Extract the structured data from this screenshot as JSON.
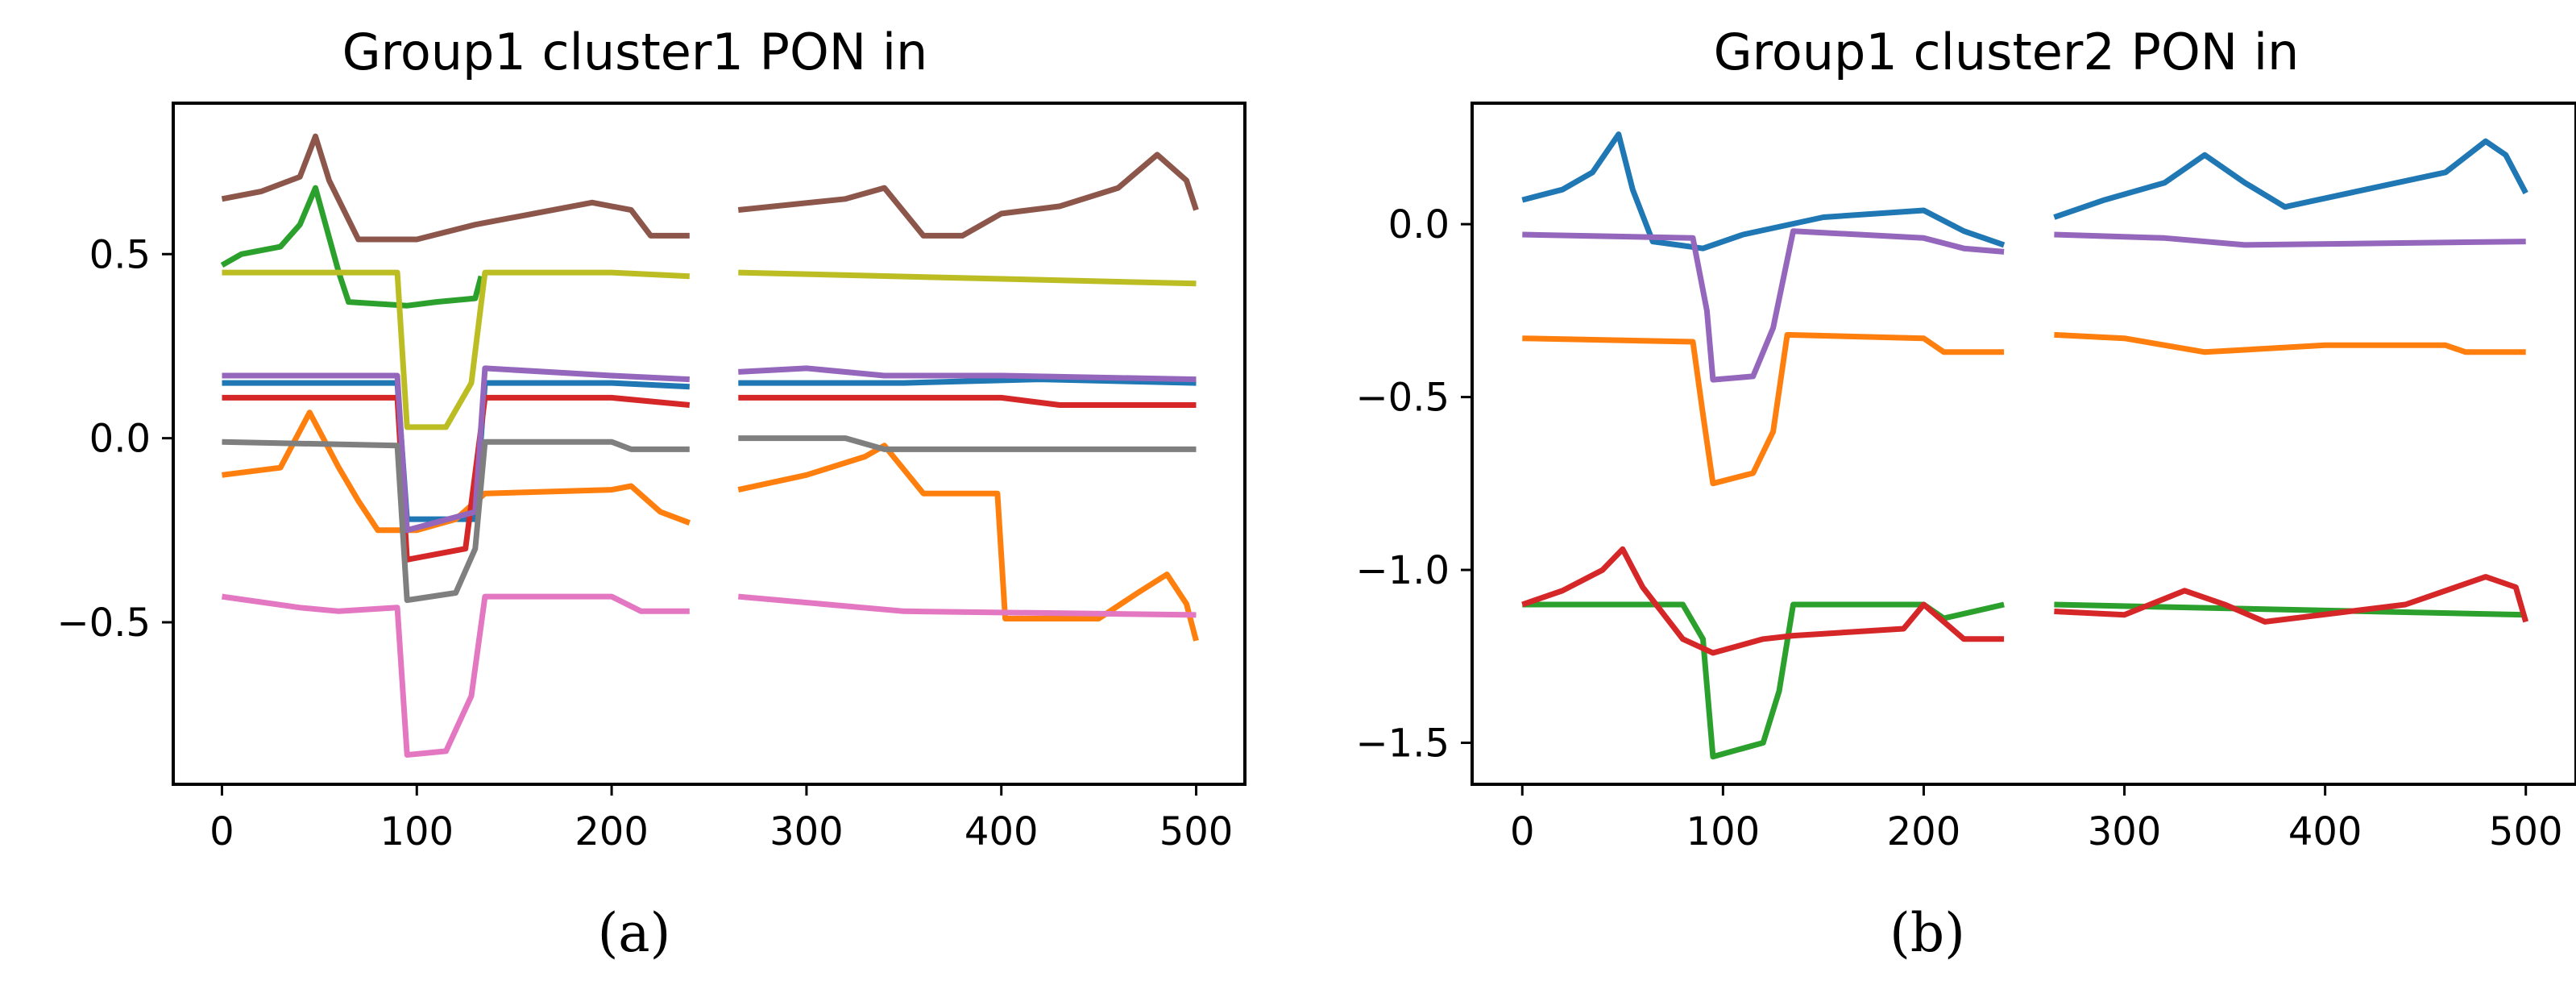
{
  "chart_data": [
    {
      "panel_id": "a",
      "type": "line",
      "title": "Group1 cluster1 PON in",
      "caption": "(a)",
      "xlabel": "",
      "ylabel": "",
      "xlim": [
        -25,
        525
      ],
      "ylim": [
        -0.94,
        0.91
      ],
      "xticks": [
        0,
        100,
        200,
        300,
        400,
        500
      ],
      "xtick_labels": [
        "0",
        "100",
        "200",
        "300",
        "400",
        "500"
      ],
      "yticks": [
        -0.5,
        0.0,
        0.5
      ],
      "ytick_labels": [
        "−0.5",
        "0.0",
        "0.5"
      ],
      "grid": false,
      "gaps": [
        [
          240,
          265
        ]
      ],
      "series": [
        {
          "name": "s1-blue",
          "color": "#1f77b4",
          "points": [
            [
              0,
              0.15
            ],
            [
              50,
              0.15
            ],
            [
              90,
              0.15
            ],
            [
              95,
              -0.22
            ],
            [
              130,
              -0.22
            ],
            [
              135,
              0.15
            ],
            [
              200,
              0.15
            ],
            [
              240,
              0.14
            ],
            [
              265,
              0.15
            ],
            [
              350,
              0.15
            ],
            [
              420,
              0.16
            ],
            [
              500,
              0.15
            ]
          ]
        },
        {
          "name": "s1-orange",
          "color": "#ff7f0e",
          "points": [
            [
              0,
              -0.1
            ],
            [
              30,
              -0.08
            ],
            [
              45,
              0.07
            ],
            [
              60,
              -0.08
            ],
            [
              70,
              -0.17
            ],
            [
              80,
              -0.25
            ],
            [
              100,
              -0.25
            ],
            [
              120,
              -0.22
            ],
            [
              135,
              -0.15
            ],
            [
              200,
              -0.14
            ],
            [
              210,
              -0.13
            ],
            [
              225,
              -0.2
            ],
            [
              240,
              -0.23
            ],
            [
              265,
              -0.14
            ],
            [
              300,
              -0.1
            ],
            [
              330,
              -0.05
            ],
            [
              340,
              -0.02
            ],
            [
              360,
              -0.15
            ],
            [
              398,
              -0.15
            ],
            [
              402,
              -0.49
            ],
            [
              450,
              -0.49
            ],
            [
              470,
              -0.42
            ],
            [
              485,
              -0.37
            ],
            [
              495,
              -0.45
            ],
            [
              500,
              -0.55
            ]
          ]
        },
        {
          "name": "s1-green",
          "color": "#2ca02c",
          "points": [
            [
              0,
              0.47
            ],
            [
              10,
              0.5
            ],
            [
              30,
              0.52
            ],
            [
              40,
              0.58
            ],
            [
              48,
              0.68
            ],
            [
              60,
              0.45
            ],
            [
              65,
              0.37
            ],
            [
              95,
              0.36
            ],
            [
              110,
              0.37
            ],
            [
              130,
              0.38
            ],
            [
              133,
              0.44
            ]
          ]
        },
        {
          "name": "s1-red",
          "color": "#d62728",
          "points": [
            [
              0,
              0.11
            ],
            [
              90,
              0.11
            ],
            [
              95,
              -0.33
            ],
            [
              125,
              -0.3
            ],
            [
              135,
              0.11
            ],
            [
              200,
              0.11
            ],
            [
              240,
              0.09
            ],
            [
              265,
              0.11
            ],
            [
              400,
              0.11
            ],
            [
              430,
              0.09
            ],
            [
              500,
              0.09
            ]
          ]
        },
        {
          "name": "s1-purple",
          "color": "#9467bd",
          "points": [
            [
              0,
              0.17
            ],
            [
              90,
              0.17
            ],
            [
              95,
              -0.25
            ],
            [
              130,
              -0.2
            ],
            [
              135,
              0.19
            ],
            [
              200,
              0.17
            ],
            [
              240,
              0.16
            ],
            [
              265,
              0.18
            ],
            [
              300,
              0.19
            ],
            [
              340,
              0.17
            ],
            [
              400,
              0.17
            ],
            [
              500,
              0.16
            ]
          ]
        },
        {
          "name": "s1-brown",
          "color": "#8c564b",
          "points": [
            [
              0,
              0.65
            ],
            [
              20,
              0.67
            ],
            [
              40,
              0.71
            ],
            [
              48,
              0.82
            ],
            [
              55,
              0.7
            ],
            [
              70,
              0.54
            ],
            [
              100,
              0.54
            ],
            [
              130,
              0.58
            ],
            [
              190,
              0.64
            ],
            [
              210,
              0.62
            ],
            [
              220,
              0.55
            ],
            [
              240,
              0.55
            ],
            [
              265,
              0.62
            ],
            [
              320,
              0.65
            ],
            [
              340,
              0.68
            ],
            [
              360,
              0.55
            ],
            [
              380,
              0.55
            ],
            [
              400,
              0.61
            ],
            [
              430,
              0.63
            ],
            [
              460,
              0.68
            ],
            [
              480,
              0.77
            ],
            [
              495,
              0.7
            ],
            [
              500,
              0.62
            ]
          ]
        },
        {
          "name": "s1-pink",
          "color": "#e377c2",
          "points": [
            [
              0,
              -0.43
            ],
            [
              40,
              -0.46
            ],
            [
              60,
              -0.47
            ],
            [
              90,
              -0.46
            ],
            [
              95,
              -0.86
            ],
            [
              115,
              -0.85
            ],
            [
              128,
              -0.7
            ],
            [
              135,
              -0.43
            ],
            [
              200,
              -0.43
            ],
            [
              215,
              -0.47
            ],
            [
              240,
              -0.47
            ],
            [
              265,
              -0.43
            ],
            [
              350,
              -0.47
            ],
            [
              500,
              -0.48
            ]
          ]
        },
        {
          "name": "s1-gray",
          "color": "#7f7f7f",
          "points": [
            [
              0,
              -0.01
            ],
            [
              90,
              -0.02
            ],
            [
              95,
              -0.44
            ],
            [
              120,
              -0.42
            ],
            [
              130,
              -0.3
            ],
            [
              135,
              -0.01
            ],
            [
              200,
              -0.01
            ],
            [
              210,
              -0.03
            ],
            [
              240,
              -0.03
            ],
            [
              265,
              0.0
            ],
            [
              320,
              0.0
            ],
            [
              340,
              -0.03
            ],
            [
              500,
              -0.03
            ]
          ]
        },
        {
          "name": "s1-olive",
          "color": "#bcbd22",
          "points": [
            [
              0,
              0.45
            ],
            [
              90,
              0.45
            ],
            [
              95,
              0.03
            ],
            [
              115,
              0.03
            ],
            [
              128,
              0.15
            ],
            [
              135,
              0.45
            ],
            [
              200,
              0.45
            ],
            [
              240,
              0.44
            ],
            [
              265,
              0.45
            ],
            [
              500,
              0.42
            ]
          ]
        }
      ]
    },
    {
      "panel_id": "b",
      "type": "line",
      "title": "Group1 cluster2 PON in",
      "caption": "(b)",
      "xlabel": "",
      "ylabel": "",
      "xlim": [
        -25,
        525
      ],
      "ylim": [
        -1.62,
        0.35
      ],
      "xticks": [
        0,
        100,
        200,
        300,
        400,
        500
      ],
      "xtick_labels": [
        "0",
        "100",
        "200",
        "300",
        "400",
        "500"
      ],
      "yticks": [
        -1.5,
        -1.0,
        -0.5,
        0.0
      ],
      "ytick_labels": [
        "−1.5",
        "−1.0",
        "−0.5",
        "0.0"
      ],
      "grid": false,
      "gaps": [
        [
          240,
          265
        ]
      ],
      "series": [
        {
          "name": "s2-blue",
          "color": "#1f77b4",
          "points": [
            [
              0,
              0.07
            ],
            [
              20,
              0.1
            ],
            [
              35,
              0.15
            ],
            [
              48,
              0.26
            ],
            [
              55,
              0.1
            ],
            [
              65,
              -0.05
            ],
            [
              90,
              -0.07
            ],
            [
              110,
              -0.03
            ],
            [
              150,
              0.02
            ],
            [
              200,
              0.04
            ],
            [
              220,
              -0.02
            ],
            [
              240,
              -0.06
            ],
            [
              265,
              0.02
            ],
            [
              290,
              0.07
            ],
            [
              320,
              0.12
            ],
            [
              340,
              0.2
            ],
            [
              360,
              0.12
            ],
            [
              380,
              0.05
            ],
            [
              420,
              0.1
            ],
            [
              460,
              0.15
            ],
            [
              480,
              0.24
            ],
            [
              490,
              0.2
            ],
            [
              500,
              0.09
            ]
          ]
        },
        {
          "name": "s2-orange",
          "color": "#ff7f0e",
          "points": [
            [
              0,
              -0.33
            ],
            [
              85,
              -0.34
            ],
            [
              90,
              -0.55
            ],
            [
              95,
              -0.75
            ],
            [
              115,
              -0.72
            ],
            [
              125,
              -0.6
            ],
            [
              132,
              -0.32
            ],
            [
              200,
              -0.33
            ],
            [
              210,
              -0.37
            ],
            [
              240,
              -0.37
            ],
            [
              265,
              -0.32
            ],
            [
              300,
              -0.33
            ],
            [
              340,
              -0.37
            ],
            [
              400,
              -0.35
            ],
            [
              460,
              -0.35
            ],
            [
              470,
              -0.37
            ],
            [
              500,
              -0.37
            ]
          ]
        },
        {
          "name": "s2-green",
          "color": "#2ca02c",
          "points": [
            [
              0,
              -1.1
            ],
            [
              80,
              -1.1
            ],
            [
              85,
              -1.15
            ],
            [
              90,
              -1.2
            ],
            [
              95,
              -1.54
            ],
            [
              120,
              -1.5
            ],
            [
              128,
              -1.35
            ],
            [
              135,
              -1.1
            ],
            [
              200,
              -1.1
            ],
            [
              210,
              -1.14
            ],
            [
              240,
              -1.1
            ],
            [
              265,
              -1.1
            ],
            [
              500,
              -1.13
            ]
          ]
        },
        {
          "name": "s2-red",
          "color": "#d62728",
          "points": [
            [
              0,
              -1.1
            ],
            [
              20,
              -1.06
            ],
            [
              40,
              -1.0
            ],
            [
              50,
              -0.94
            ],
            [
              60,
              -1.05
            ],
            [
              80,
              -1.2
            ],
            [
              95,
              -1.24
            ],
            [
              120,
              -1.2
            ],
            [
              135,
              -1.19
            ],
            [
              190,
              -1.17
            ],
            [
              200,
              -1.1
            ],
            [
              220,
              -1.2
            ],
            [
              240,
              -1.2
            ],
            [
              265,
              -1.12
            ],
            [
              300,
              -1.13
            ],
            [
              330,
              -1.06
            ],
            [
              350,
              -1.1
            ],
            [
              370,
              -1.15
            ],
            [
              440,
              -1.1
            ],
            [
              460,
              -1.06
            ],
            [
              480,
              -1.02
            ],
            [
              495,
              -1.05
            ],
            [
              500,
              -1.15
            ]
          ]
        },
        {
          "name": "s2-purple",
          "color": "#9467bd",
          "points": [
            [
              0,
              -0.03
            ],
            [
              85,
              -0.04
            ],
            [
              92,
              -0.25
            ],
            [
              95,
              -0.45
            ],
            [
              115,
              -0.44
            ],
            [
              125,
              -0.3
            ],
            [
              135,
              -0.02
            ],
            [
              200,
              -0.04
            ],
            [
              220,
              -0.07
            ],
            [
              240,
              -0.08
            ],
            [
              265,
              -0.03
            ],
            [
              320,
              -0.04
            ],
            [
              360,
              -0.06
            ],
            [
              500,
              -0.05
            ]
          ]
        }
      ]
    }
  ]
}
